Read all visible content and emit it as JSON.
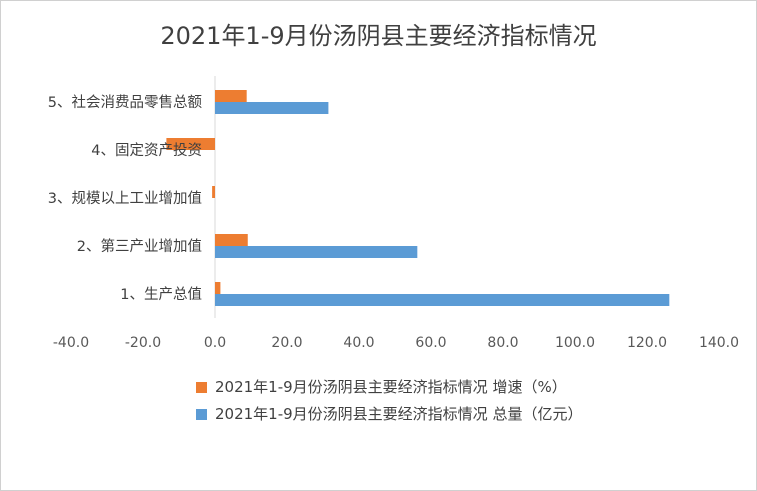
{
  "chart_data": {
    "type": "bar",
    "orientation": "horizontal",
    "title": "2021年1-9月份汤阴县主要经济指标情况",
    "categories": [
      "1、生产总值",
      "2、第三产业增加值",
      "3、规模以上工业增加值",
      "4、固定资产投资",
      "5、社会消费品零售总额"
    ],
    "series": [
      {
        "name": "2021年1-9月份汤阴县主要经济指标情况 增速（%）",
        "color": "#ED7D31",
        "values": [
          1.5,
          9.1,
          -0.8,
          -13.5,
          8.8
        ]
      },
      {
        "name": "2021年1-9月份汤阴县主要经济指标情况 总量（亿元）",
        "color": "#5B9BD5",
        "values": [
          126.2,
          56.2,
          null,
          null,
          31.5
        ]
      }
    ],
    "xlim": [
      -40,
      140
    ],
    "xticks": [
      "-40.0",
      "-20.0",
      "0.0",
      "20.0",
      "40.0",
      "60.0",
      "80.0",
      "100.0",
      "120.0",
      "140.0"
    ],
    "legend_position": "bottom",
    "grid": false
  }
}
